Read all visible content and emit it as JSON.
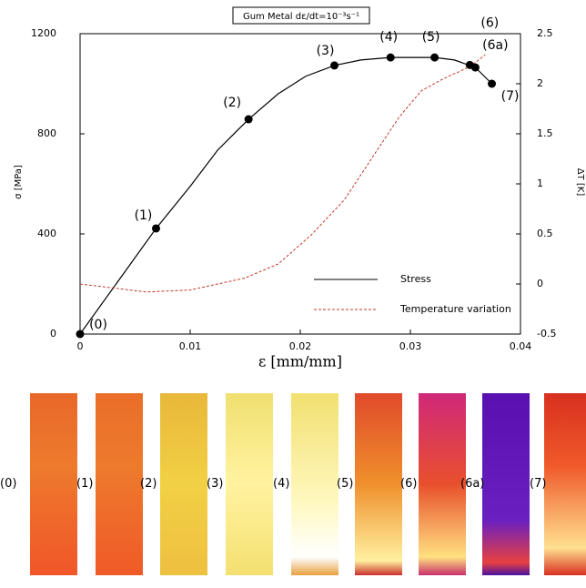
{
  "chart_data": {
    "type": "line",
    "title": "Gum Metal dε/dt=10⁻³s⁻¹",
    "xlabel": "ε [mm/mm]",
    "ylabel": "σ [MPa]",
    "y2label": "ΔT [K]",
    "xlim": [
      0,
      0.04
    ],
    "xticks": [
      0,
      0.01,
      0.02,
      0.03,
      0.04
    ],
    "ylim": [
      0,
      1200
    ],
    "yticks": [
      0,
      400,
      800,
      1200
    ],
    "y2lim": [
      -0.5,
      2.5
    ],
    "y2ticks": [
      -0.5,
      0,
      0.5,
      1,
      1.5,
      2,
      2.5
    ],
    "series": [
      {
        "name": "Stress",
        "color": "#000000",
        "x": [
          0,
          0.0069,
          0.01,
          0.0125,
          0.0153,
          0.018,
          0.0205,
          0.0231,
          0.0255,
          0.0282,
          0.0322,
          0.034,
          0.0359,
          0.0374
        ],
        "values": [
          0,
          422,
          590,
          735,
          858,
          960,
          1030,
          1073,
          1095,
          1105,
          1105,
          1095,
          1065,
          1000
        ]
      },
      {
        "name": "Temperature variation",
        "color": "#c0392b",
        "axis": "y2",
        "x": [
          0,
          0.003,
          0.006,
          0.01,
          0.015,
          0.018,
          0.021,
          0.024,
          0.027,
          0.029,
          0.031,
          0.033,
          0.035,
          0.036,
          0.0368
        ],
        "values": [
          0,
          -0.04,
          -0.08,
          -0.06,
          0.06,
          0.2,
          0.49,
          0.84,
          1.34,
          1.67,
          1.93,
          2.05,
          2.15,
          2.22,
          2.29
        ]
      }
    ],
    "points": {
      "labels": [
        "(0)",
        "(1)",
        "(2)",
        "(3)",
        "(4)",
        "(5)",
        "(6)",
        "(6a)",
        "(7)"
      ],
      "x": [
        0,
        0.0069,
        0.0153,
        0.0231,
        0.0282,
        0.0322,
        0.0354,
        0.0359,
        0.0374
      ],
      "values": [
        0,
        422,
        858,
        1073,
        1105,
        1105,
        1075,
        1065,
        1000
      ]
    }
  },
  "panels": [
    "(0)",
    "(1)",
    "(2)",
    "(3)",
    "(4)",
    "(5)",
    "(6)",
    "(6a)",
    "(7)"
  ]
}
